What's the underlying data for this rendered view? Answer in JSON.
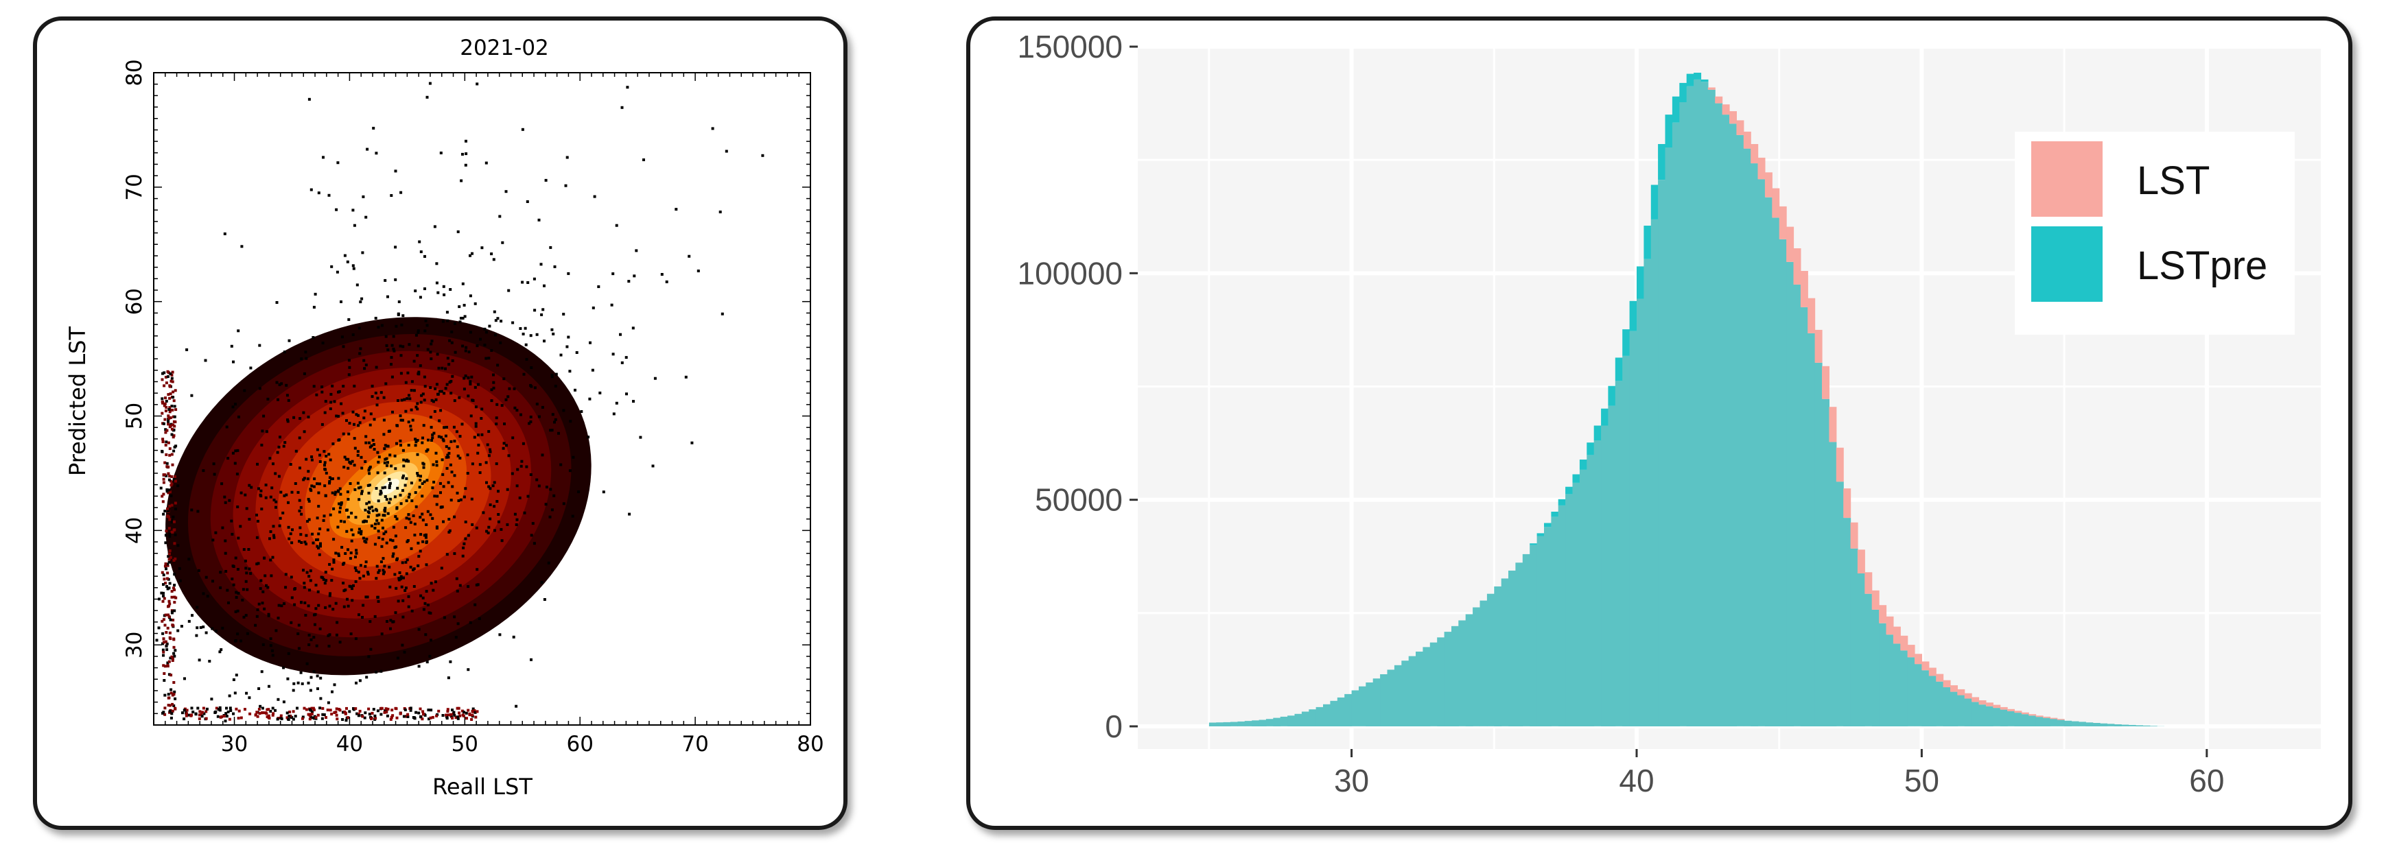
{
  "charts": {
    "scatter": {
      "title": "2021-02",
      "xlabel": "Reall LST",
      "ylabel": "Predicted LST"
    },
    "histogram": {
      "legend": {
        "lst_label": "LST",
        "lstpre_label": "LSTpre"
      }
    }
  },
  "colors": {
    "lst": "#F8A9A1",
    "lstpre": "#20C4C8",
    "overlap": "#5CC3C4",
    "hist_panel_bg": "#F5F5F5",
    "density_low": "#2a0000",
    "density_high": "#ffffff"
  },
  "chart_data": [
    {
      "type": "heatmap",
      "title": "2021-02",
      "xlabel": "Reall LST",
      "ylabel": "Predicted LST",
      "xlim": [
        23,
        80
      ],
      "ylim": [
        23,
        80
      ],
      "x_ticks": [
        30,
        40,
        50,
        60,
        70,
        80
      ],
      "y_ticks": [
        30,
        40,
        50,
        60,
        70,
        80
      ],
      "colormap": "black-red-orange-yellow-white (density)",
      "density_peak": {
        "x": 42.5,
        "y": 43
      },
      "main_cluster_range": {
        "x": [
          26,
          60
        ],
        "y": [
          25,
          57
        ]
      },
      "grid": false
    },
    {
      "type": "area",
      "subtype": "histogram (overlapping)",
      "xlim": [
        22.5,
        64
      ],
      "ylim": [
        -5000,
        150000
      ],
      "x_ticks": [
        30,
        40,
        50,
        60
      ],
      "y_ticks": [
        0,
        50000,
        100000,
        150000
      ],
      "grid": true,
      "legend_position": "top-right",
      "bin_width": 0.5,
      "series": [
        {
          "name": "LST",
          "x": [
            25,
            26,
            27,
            28,
            29,
            30,
            31,
            32,
            33,
            34,
            35,
            36,
            37,
            38,
            39,
            40,
            41,
            41.5,
            42,
            42.5,
            43,
            43.5,
            44,
            44.5,
            45,
            45.5,
            46,
            46.5,
            47,
            47.5,
            48,
            48.5,
            49,
            50,
            51,
            52,
            53,
            54,
            55,
            56,
            57,
            58,
            58.5
          ],
          "y": [
            800,
            1000,
            1500,
            2500,
            4500,
            7500,
            11000,
            15000,
            19000,
            24000,
            30000,
            37000,
            45000,
            55000,
            68000,
            90000,
            125000,
            136000,
            143000,
            142000,
            138000,
            135000,
            130000,
            124000,
            117000,
            108000,
            98000,
            84000,
            66000,
            48000,
            36000,
            28000,
            23000,
            15000,
            9500,
            6000,
            4000,
            2500,
            1500,
            900,
            500,
            200,
            0
          ]
        },
        {
          "name": "LSTpre",
          "x": [
            25,
            26,
            27,
            28,
            29,
            30,
            31,
            32,
            33,
            34,
            35,
            36,
            37,
            38,
            39,
            40,
            41,
            41.5,
            42,
            42.5,
            43,
            43.5,
            44,
            44.5,
            45,
            45.5,
            46,
            46.5,
            47,
            47.5,
            48,
            48.5,
            49,
            50,
            51,
            52,
            53,
            54,
            55,
            56,
            57,
            58,
            58.5
          ],
          "y": [
            800,
            1000,
            1500,
            2500,
            4500,
            7500,
            11000,
            15000,
            19000,
            24000,
            30000,
            37000,
            46000,
            57000,
            72000,
            97000,
            133000,
            141000,
            145000,
            142000,
            136000,
            132000,
            126000,
            119000,
            110000,
            100000,
            90000,
            77000,
            58000,
            42000,
            31000,
            24000,
            19000,
            13000,
            8000,
            5000,
            3500,
            2200,
            1300,
            800,
            400,
            150,
            0
          ]
        }
      ]
    }
  ]
}
